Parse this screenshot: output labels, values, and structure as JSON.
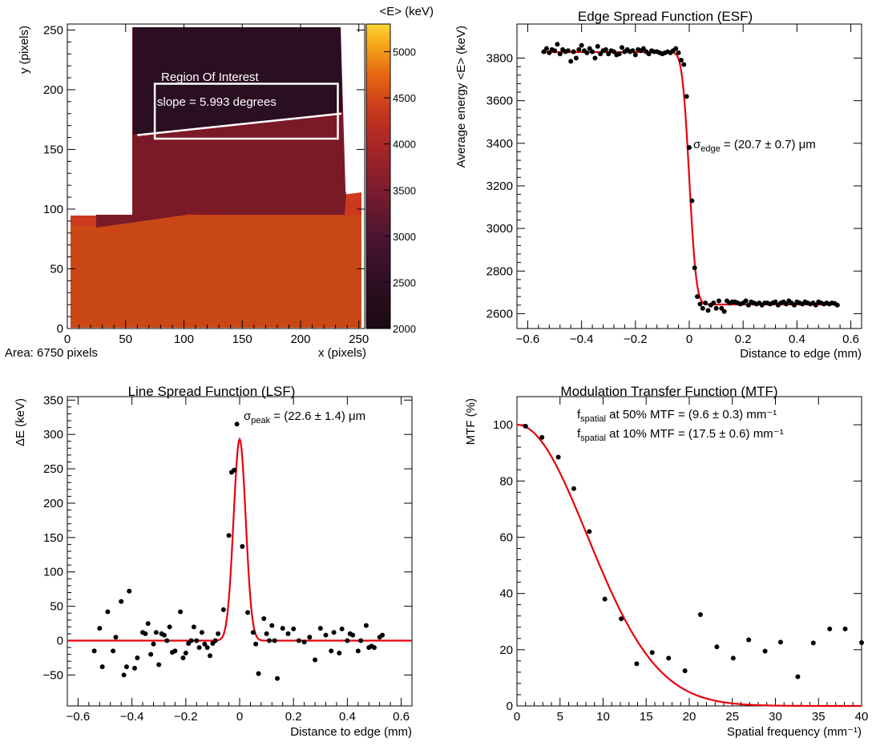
{
  "chart_data": [
    {
      "id": "map",
      "type": "heatmap",
      "xlabel": "x (pixels)",
      "ylabel": "y (pixels)",
      "colorbar_title": "<E> (keV)",
      "xlim": [
        0,
        255
      ],
      "ylim": [
        0,
        255
      ],
      "xticks": [
        0,
        50,
        100,
        150,
        200,
        250
      ],
      "yticks": [
        0,
        50,
        100,
        150,
        200,
        250
      ],
      "zlim": [
        2000,
        5300
      ],
      "zticks": [
        2000,
        2500,
        3000,
        3500,
        4000,
        4500,
        5000
      ],
      "area_label": "Area: 6750 pixels",
      "roi_label": "Region Of Interest",
      "slope_label": "slope = 5.993 degrees",
      "roi_box": {
        "x0": 75,
        "x1": 232,
        "y0": 159,
        "y1": 205
      },
      "edge_line": {
        "x0": 60,
        "y0": 162,
        "x1": 235,
        "y1": 180
      },
      "upper_region": {
        "value_keV": 3800,
        "x_range": [
          60,
          237
        ],
        "y_top": 251
      },
      "dark_band": {
        "value_keV": 2300,
        "y_range": [
          177,
          251
        ]
      },
      "lower_region": {
        "value_keV": 4600,
        "x_range": [
          5,
          252
        ],
        "y_top": 95
      }
    },
    {
      "id": "esf",
      "type": "scatter",
      "title": "Edge Spread Function (ESF)",
      "xlabel": "Distance to edge (mm)",
      "ylabel": "Average energy <E> (keV)",
      "xlim": [
        -0.64,
        0.64
      ],
      "ylim": [
        2530,
        3960
      ],
      "xticks": [
        -0.6,
        -0.4,
        -0.2,
        0,
        0.2,
        0.4,
        0.6
      ],
      "yticks": [
        2600,
        2800,
        3000,
        3200,
        3400,
        3600,
        3800
      ],
      "annotation": {
        "sym": "σ",
        "sub": "edge",
        "rest": " = (20.7 ± 0.7) μm"
      },
      "points": [
        [
          -0.54,
          3830
        ],
        [
          -0.53,
          3845
        ],
        [
          -0.52,
          3825
        ],
        [
          -0.51,
          3840
        ],
        [
          -0.5,
          3835
        ],
        [
          -0.49,
          3865
        ],
        [
          -0.48,
          3820
        ],
        [
          -0.47,
          3840
        ],
        [
          -0.46,
          3830
        ],
        [
          -0.45,
          3835
        ],
        [
          -0.44,
          3785
        ],
        [
          -0.43,
          3830
        ],
        [
          -0.42,
          3800
        ],
        [
          -0.41,
          3840
        ],
        [
          -0.4,
          3860
        ],
        [
          -0.39,
          3835
        ],
        [
          -0.38,
          3825
        ],
        [
          -0.37,
          3845
        ],
        [
          -0.36,
          3830
        ],
        [
          -0.35,
          3800
        ],
        [
          -0.34,
          3855
        ],
        [
          -0.33,
          3820
        ],
        [
          -0.32,
          3835
        ],
        [
          -0.31,
          3840
        ],
        [
          -0.3,
          3820
        ],
        [
          -0.29,
          3835
        ],
        [
          -0.28,
          3830
        ],
        [
          -0.27,
          3815
        ],
        [
          -0.26,
          3820
        ],
        [
          -0.25,
          3850
        ],
        [
          -0.24,
          3830
        ],
        [
          -0.23,
          3840
        ],
        [
          -0.22,
          3830
        ],
        [
          -0.21,
          3835
        ],
        [
          -0.2,
          3815
        ],
        [
          -0.19,
          3840
        ],
        [
          -0.18,
          3835
        ],
        [
          -0.17,
          3845
        ],
        [
          -0.16,
          3830
        ],
        [
          -0.15,
          3820
        ],
        [
          -0.14,
          3835
        ],
        [
          -0.13,
          3830
        ],
        [
          -0.12,
          3830
        ],
        [
          -0.11,
          3825
        ],
        [
          -0.1,
          3820
        ],
        [
          -0.09,
          3825
        ],
        [
          -0.08,
          3830
        ],
        [
          -0.07,
          3825
        ],
        [
          -0.06,
          3835
        ],
        [
          -0.05,
          3845
        ],
        [
          -0.04,
          3825
        ],
        [
          -0.03,
          3790
        ],
        [
          -0.02,
          3770
        ],
        [
          -0.01,
          3620
        ],
        [
          0,
          3380
        ],
        [
          0.01,
          3130
        ],
        [
          0.02,
          2815
        ],
        [
          0.03,
          2680
        ],
        [
          0.04,
          2645
        ],
        [
          0.05,
          2625
        ],
        [
          0.06,
          2650
        ],
        [
          0.07,
          2615
        ],
        [
          0.08,
          2640
        ],
        [
          0.09,
          2650
        ],
        [
          0.1,
          2625
        ],
        [
          0.11,
          2660
        ],
        [
          0.12,
          2625
        ],
        [
          0.13,
          2610
        ],
        [
          0.14,
          2660
        ],
        [
          0.15,
          2650
        ],
        [
          0.16,
          2655
        ],
        [
          0.17,
          2655
        ],
        [
          0.18,
          2650
        ],
        [
          0.19,
          2645
        ],
        [
          0.2,
          2650
        ],
        [
          0.21,
          2660
        ],
        [
          0.22,
          2640
        ],
        [
          0.23,
          2655
        ],
        [
          0.24,
          2650
        ],
        [
          0.25,
          2645
        ],
        [
          0.26,
          2650
        ],
        [
          0.27,
          2640
        ],
        [
          0.28,
          2650
        ],
        [
          0.29,
          2650
        ],
        [
          0.3,
          2645
        ],
        [
          0.31,
          2650
        ],
        [
          0.32,
          2655
        ],
        [
          0.33,
          2640
        ],
        [
          0.34,
          2650
        ],
        [
          0.35,
          2655
        ],
        [
          0.36,
          2645
        ],
        [
          0.37,
          2660
        ],
        [
          0.38,
          2650
        ],
        [
          0.39,
          2640
        ],
        [
          0.4,
          2655
        ],
        [
          0.41,
          2650
        ],
        [
          0.42,
          2645
        ],
        [
          0.43,
          2655
        ],
        [
          0.44,
          2650
        ],
        [
          0.45,
          2645
        ],
        [
          0.46,
          2650
        ],
        [
          0.47,
          2640
        ],
        [
          0.48,
          2655
        ],
        [
          0.49,
          2650
        ],
        [
          0.5,
          2645
        ],
        [
          0.51,
          2650
        ],
        [
          0.52,
          2645
        ],
        [
          0.53,
          2650
        ],
        [
          0.54,
          2648
        ],
        [
          0.55,
          2640
        ]
      ],
      "fit": {
        "high": 3828,
        "low": 2643,
        "center_mm": 0.0,
        "sigma_mm": 0.0207,
        "x_range": [
          -0.55,
          0.55
        ]
      }
    },
    {
      "id": "lsf",
      "type": "scatter",
      "title": "Line Spread Function (LSF)",
      "xlabel": "Distance to edge (mm)",
      "ylabel": "ΔE (keV)",
      "xlim": [
        -0.64,
        0.64
      ],
      "ylim": [
        -95,
        355
      ],
      "xticks": [
        -0.6,
        -0.4,
        -0.2,
        0,
        0.2,
        0.4,
        0.6
      ],
      "yticks": [
        -50,
        0,
        50,
        100,
        150,
        200,
        250,
        300,
        350
      ],
      "annotation": {
        "sym": "σ",
        "sub": "peak",
        "rest": " = (22.6 ± 1.4) μm"
      },
      "points": [
        [
          -0.54,
          -15
        ],
        [
          -0.52,
          18
        ],
        [
          -0.51,
          -38
        ],
        [
          -0.49,
          42
        ],
        [
          -0.47,
          -15
        ],
        [
          -0.46,
          5
        ],
        [
          -0.44,
          57
        ],
        [
          -0.43,
          -50
        ],
        [
          -0.42,
          -38
        ],
        [
          -0.41,
          72
        ],
        [
          -0.39,
          -40
        ],
        [
          -0.38,
          -25
        ],
        [
          -0.36,
          12
        ],
        [
          -0.35,
          10
        ],
        [
          -0.34,
          25
        ],
        [
          -0.33,
          -20
        ],
        [
          -0.32,
          -5
        ],
        [
          -0.31,
          12
        ],
        [
          -0.3,
          -35
        ],
        [
          -0.29,
          10
        ],
        [
          -0.28,
          8
        ],
        [
          -0.27,
          0
        ],
        [
          -0.26,
          20
        ],
        [
          -0.25,
          -17
        ],
        [
          -0.24,
          -15
        ],
        [
          -0.22,
          42
        ],
        [
          -0.21,
          -25
        ],
        [
          -0.2,
          -18
        ],
        [
          -0.19,
          -4
        ],
        [
          -0.18,
          0
        ],
        [
          -0.17,
          20
        ],
        [
          -0.16,
          0
        ],
        [
          -0.15,
          -10
        ],
        [
          -0.14,
          12
        ],
        [
          -0.13,
          -5
        ],
        [
          -0.12,
          -10
        ],
        [
          -0.11,
          -22
        ],
        [
          -0.1,
          -4
        ],
        [
          -0.09,
          0
        ],
        [
          -0.08,
          10
        ],
        [
          -0.06,
          45
        ],
        [
          -0.04,
          153
        ],
        [
          -0.03,
          245
        ],
        [
          -0.02,
          248
        ],
        [
          -0.01,
          315
        ],
        [
          0.01,
          137
        ],
        [
          0.03,
          41
        ],
        [
          0.05,
          12
        ],
        [
          0.06,
          -5
        ],
        [
          0.07,
          -48
        ],
        [
          0.09,
          32
        ],
        [
          0.1,
          10
        ],
        [
          0.11,
          0
        ],
        [
          0.12,
          22
        ],
        [
          0.13,
          0
        ],
        [
          0.14,
          -55
        ],
        [
          0.16,
          18
        ],
        [
          0.18,
          10
        ],
        [
          0.2,
          17
        ],
        [
          0.22,
          0
        ],
        [
          0.24,
          -2
        ],
        [
          0.26,
          5
        ],
        [
          0.28,
          -28
        ],
        [
          0.3,
          18
        ],
        [
          0.32,
          8
        ],
        [
          0.34,
          -15
        ],
        [
          0.35,
          12
        ],
        [
          0.37,
          -18
        ],
        [
          0.38,
          17
        ],
        [
          0.4,
          0
        ],
        [
          0.41,
          10
        ],
        [
          0.42,
          8
        ],
        [
          0.44,
          -15
        ],
        [
          0.45,
          0
        ],
        [
          0.47,
          22
        ],
        [
          0.48,
          -10
        ],
        [
          0.49,
          -8
        ],
        [
          0.5,
          -10
        ],
        [
          0.52,
          5
        ],
        [
          0.53,
          8
        ]
      ],
      "fit": {
        "amplitude": 293,
        "center_mm": 0.0,
        "sigma_mm": 0.0226,
        "baseline": 0,
        "x_range": [
          -0.64,
          0.64
        ]
      }
    },
    {
      "id": "mtf",
      "type": "scatter",
      "title": "Modulation Transfer Function (MTF)",
      "xlabel": "Spatial frequency (mm⁻¹)",
      "ylabel": "MTF (%)",
      "xlim": [
        0,
        40
      ],
      "ylim": [
        0,
        110
      ],
      "xticks": [
        0,
        5,
        10,
        15,
        20,
        25,
        30,
        35,
        40
      ],
      "yticks": [
        0,
        20,
        40,
        60,
        80,
        100
      ],
      "annotations": [
        {
          "sym": "f",
          "sub": "spatial",
          "rest": " at 50% MTF = (9.6 ± 0.3) mm⁻¹"
        },
        {
          "sym": "f",
          "sub": "spatial",
          "rest": " at 10% MTF = (17.5 ± 0.6) mm⁻¹"
        }
      ],
      "points": [
        [
          1.0,
          99.5
        ],
        [
          2.9,
          95.5
        ],
        [
          4.8,
          88.5
        ],
        [
          6.6,
          77.3
        ],
        [
          8.4,
          62
        ],
        [
          10.2,
          38
        ],
        [
          12.1,
          31
        ],
        [
          13.9,
          15
        ],
        [
          15.7,
          19
        ],
        [
          17.6,
          17
        ],
        [
          19.5,
          12.5
        ],
        [
          21.3,
          32.5
        ],
        [
          23.2,
          21
        ],
        [
          25.1,
          17
        ],
        [
          26.9,
          23.5
        ],
        [
          28.8,
          19.5
        ],
        [
          30.6,
          22.7
        ],
        [
          32.6,
          10.4
        ],
        [
          34.4,
          22.4
        ],
        [
          36.3,
          27.4
        ],
        [
          38.1,
          27.4
        ],
        [
          40.0,
          22.5
        ]
      ],
      "fit": {
        "amplitude": 100,
        "f50": 9.6,
        "x_range": [
          0,
          40
        ]
      }
    }
  ]
}
